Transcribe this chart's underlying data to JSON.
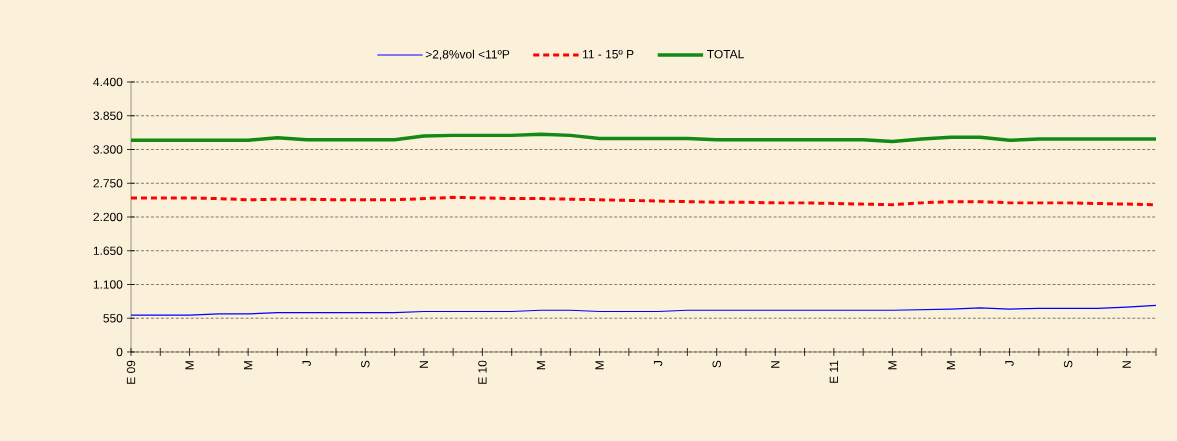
{
  "chart_data": {
    "type": "line",
    "categories": [
      "E 09",
      null,
      "M",
      null,
      "M",
      null,
      "J",
      null,
      "S",
      null,
      "N",
      null,
      "E 10",
      null,
      "M",
      null,
      "M",
      null,
      "J",
      null,
      "S",
      null,
      "N",
      null,
      "E 11",
      null,
      "M",
      null,
      "M",
      null,
      "J",
      null,
      "S",
      null,
      "N",
      null
    ],
    "series": [
      {
        "name": ">2,8%vol <11ºP",
        "color": "#0000ff",
        "line_style": "solid",
        "values": [
          600,
          600,
          600,
          620,
          620,
          640,
          640,
          640,
          640,
          640,
          660,
          660,
          660,
          660,
          680,
          680,
          660,
          660,
          660,
          680,
          680,
          680,
          680,
          680,
          680,
          680,
          680,
          690,
          700,
          720,
          700,
          710,
          710,
          710,
          730,
          760
        ]
      },
      {
        "name": "11 - 15º P",
        "color": "#ff0000",
        "line_style": "dashed",
        "values": [
          2510,
          2510,
          2510,
          2500,
          2480,
          2490,
          2490,
          2480,
          2480,
          2480,
          2500,
          2520,
          2510,
          2500,
          2500,
          2490,
          2480,
          2470,
          2460,
          2450,
          2440,
          2440,
          2430,
          2430,
          2420,
          2410,
          2400,
          2430,
          2450,
          2450,
          2430,
          2430,
          2430,
          2420,
          2410,
          2400
        ]
      },
      {
        "name": "TOTAL",
        "color": "#138a13",
        "line_style": "solid",
        "values": [
          3450,
          3450,
          3450,
          3450,
          3450,
          3490,
          3460,
          3460,
          3460,
          3460,
          3520,
          3530,
          3530,
          3530,
          3550,
          3530,
          3480,
          3480,
          3480,
          3480,
          3460,
          3460,
          3460,
          3460,
          3460,
          3460,
          3430,
          3470,
          3500,
          3500,
          3450,
          3470,
          3470,
          3470,
          3470,
          3470
        ]
      }
    ],
    "ylim": [
      0,
      4400
    ],
    "yticks": [
      0,
      550,
      {
        "value": 1100,
        "label": "1.100"
      },
      {
        "value": 1650,
        "label": "1.650"
      },
      {
        "value": 2200,
        "label": "2.200"
      },
      {
        "value": 2750,
        "label": "2.750"
      },
      {
        "value": 3300,
        "label": "3.300"
      },
      {
        "value": 3850,
        "label": "3.850"
      },
      {
        "value": 4400,
        "label": "4.400"
      }
    ],
    "grid": "y",
    "legend": "top",
    "marker": "none"
  }
}
